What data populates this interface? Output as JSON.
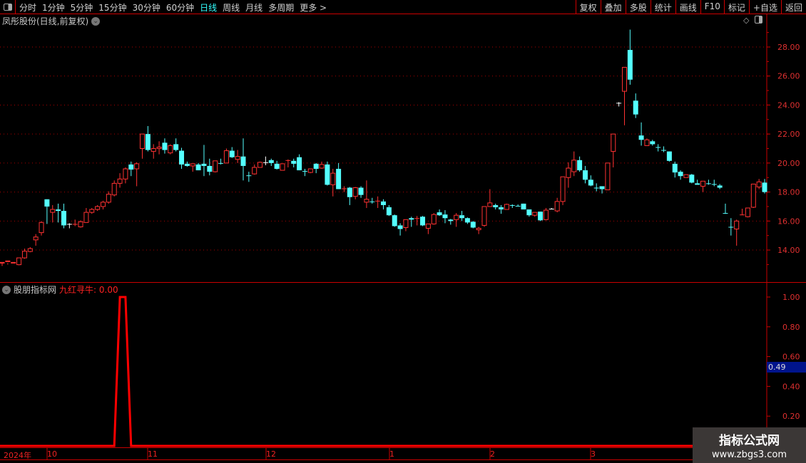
{
  "toolbar": {
    "periods": [
      "分时",
      "1分钟",
      "5分钟",
      "15分钟",
      "30分钟",
      "60分钟",
      "日线",
      "周线",
      "月线",
      "多周期",
      "更多 >"
    ],
    "active_period": "日线",
    "buttons": [
      "复权",
      "叠加",
      "多股",
      "统计",
      "画线",
      "F10",
      "标记",
      "+自选",
      "返回"
    ]
  },
  "main": {
    "title": "凤彤股份(日线,前复权)",
    "y_ticks": [
      "28.00",
      "26.00",
      "24.00",
      "22.00",
      "20.00",
      "18.00",
      "16.00",
      "14.00"
    ]
  },
  "indicator": {
    "name": "股朋指标网",
    "value_label": "九红寻牛: 0.00",
    "y_ticks": [
      "1.00",
      "0.80",
      "0.60",
      "0.40",
      "0.20"
    ],
    "cursor_value": "0.49"
  },
  "time_axis": [
    "2024年",
    "10",
    "11",
    "12",
    "1",
    "2",
    "3"
  ],
  "watermark": {
    "line1": "指标公式网",
    "line2": "www.zbgs3.com"
  },
  "colors": {
    "up": "#ff3232",
    "down": "#54ffff",
    "axis": "#c80000",
    "signal": "#ff0000"
  },
  "chart_data": {
    "type": "candlestick",
    "y_range": [
      12.5,
      29.5
    ],
    "ohlc": [
      [
        13.1,
        13.15,
        12.9,
        13.1
      ],
      [
        13.2,
        13.25,
        13.0,
        13.1
      ],
      [
        13.1,
        13.15,
        13.0,
        13.0
      ],
      [
        12.99,
        13.46,
        12.95,
        13.46
      ],
      [
        13.46,
        13.92,
        13.4,
        14.1
      ],
      [
        13.9,
        14.1,
        13.85,
        14.2
      ],
      [
        14.7,
        14.9,
        14.3,
        15.1
      ],
      [
        15.2,
        15.9,
        15.0,
        16.0
      ],
      [
        17.5,
        17.0,
        15.8,
        17.5
      ],
      [
        16.6,
        16.8,
        15.9,
        17.1
      ],
      [
        16.8,
        16.7,
        15.9,
        17.2
      ],
      [
        16.7,
        15.7,
        15.5,
        17.2
      ],
      [
        15.8,
        15.8,
        15.5,
        15.85
      ],
      [
        15.8,
        15.8,
        15.65,
        16.1
      ],
      [
        15.6,
        15.95,
        15.55,
        16.05
      ],
      [
        15.9,
        16.6,
        15.9,
        16.9
      ],
      [
        16.6,
        16.8,
        16.5,
        16.9
      ],
      [
        16.8,
        17.0,
        16.7,
        17.1
      ],
      [
        17.0,
        17.3,
        16.8,
        17.4
      ],
      [
        17.3,
        17.85,
        17.2,
        18.05
      ],
      [
        17.8,
        18.6,
        17.7,
        18.8
      ],
      [
        18.6,
        18.9,
        18.3,
        19.3
      ],
      [
        18.9,
        19.6,
        18.6,
        19.7
      ],
      [
        19.9,
        19.55,
        19.1,
        20.1
      ],
      [
        19.6,
        19.95,
        18.4,
        20.05
      ],
      [
        21.0,
        22.0,
        20.3,
        22.0
      ],
      [
        22.0,
        20.9,
        20.8,
        22.55
      ],
      [
        20.8,
        21.0,
        20.3,
        21.3
      ],
      [
        21.0,
        21.1,
        20.6,
        21.5
      ],
      [
        21.4,
        20.9,
        20.65,
        21.7
      ],
      [
        20.7,
        21.2,
        20.6,
        21.3
      ],
      [
        21.3,
        20.9,
        20.8,
        21.7
      ],
      [
        20.85,
        19.9,
        19.6,
        21.05
      ],
      [
        19.95,
        19.8,
        19.75,
        20.1
      ],
      [
        19.8,
        19.95,
        19.4,
        19.95
      ],
      [
        19.9,
        19.5,
        19.5,
        20.0
      ],
      [
        19.95,
        19.8,
        19.1,
        21.25
      ],
      [
        19.8,
        19.4,
        19.15,
        20.3
      ],
      [
        19.4,
        20.15,
        19.35,
        20.15
      ],
      [
        20.0,
        20.0,
        19.9,
        20.3
      ],
      [
        20.0,
        20.85,
        20.0,
        21.0
      ],
      [
        20.85,
        20.4,
        20.35,
        21.1
      ],
      [
        20.25,
        20.45,
        20.0,
        20.9
      ],
      [
        20.45,
        19.8,
        18.8,
        21.7
      ],
      [
        19.15,
        19.15,
        18.7,
        19.4
      ],
      [
        19.25,
        19.7,
        19.2,
        19.9
      ],
      [
        19.7,
        20.05,
        19.7,
        20.1
      ],
      [
        20.05,
        20.05,
        19.85,
        20.45
      ],
      [
        20.2,
        20.0,
        19.8,
        20.3
      ],
      [
        19.95,
        19.6,
        19.55,
        20.15
      ],
      [
        19.5,
        19.95,
        19.5,
        19.95
      ],
      [
        20.2,
        20.2,
        19.7,
        20.25
      ],
      [
        20.15,
        19.95,
        19.7,
        20.3
      ],
      [
        20.4,
        19.5,
        19.5,
        20.6
      ],
      [
        19.45,
        19.45,
        19.1,
        19.6
      ],
      [
        19.35,
        19.6,
        19.3,
        19.6
      ],
      [
        19.95,
        19.6,
        19.3,
        20.0
      ],
      [
        19.65,
        19.9,
        19.6,
        20.1
      ],
      [
        19.9,
        18.5,
        18.45,
        20.1
      ],
      [
        18.5,
        19.3,
        17.7,
        19.6
      ],
      [
        19.6,
        18.2,
        18.2,
        20.0
      ],
      [
        18.25,
        18.25,
        18.0,
        18.4
      ],
      [
        18.3,
        17.65,
        17.1,
        18.35
      ],
      [
        17.7,
        18.3,
        17.5,
        18.35
      ],
      [
        18.3,
        17.8,
        17.6,
        18.4
      ],
      [
        17.3,
        17.5,
        16.9,
        18.8
      ],
      [
        17.35,
        17.35,
        17.2,
        17.6
      ],
      [
        17.4,
        17.4,
        16.9,
        17.7
      ],
      [
        17.35,
        17.1,
        16.8,
        17.5
      ],
      [
        16.95,
        16.4,
        16.35,
        17.1
      ],
      [
        16.4,
        15.65,
        15.6,
        16.45
      ],
      [
        15.7,
        15.45,
        15.0,
        15.85
      ],
      [
        15.55,
        16.1,
        15.3,
        16.1
      ],
      [
        16.2,
        16.1,
        15.6,
        16.3
      ],
      [
        16.2,
        16.2,
        15.7,
        16.35
      ],
      [
        16.3,
        15.7,
        15.65,
        16.35
      ],
      [
        15.5,
        15.8,
        15.1,
        15.8
      ],
      [
        15.8,
        16.45,
        15.75,
        16.55
      ],
      [
        16.6,
        16.4,
        16.35,
        16.8
      ],
      [
        16.45,
        16.2,
        15.85,
        16.75
      ],
      [
        16.1,
        16.0,
        15.75,
        16.15
      ],
      [
        16.1,
        16.4,
        15.6,
        16.55
      ],
      [
        16.4,
        16.2,
        16.0,
        16.7
      ],
      [
        16.2,
        15.9,
        15.8,
        16.25
      ],
      [
        15.95,
        15.55,
        15.5,
        16.0
      ],
      [
        15.4,
        15.5,
        15.1,
        15.6
      ],
      [
        15.7,
        17.0,
        15.6,
        17.0
      ],
      [
        17.0,
        17.25,
        17.0,
        18.2
      ],
      [
        17.1,
        16.95,
        16.8,
        17.2
      ],
      [
        16.95,
        16.8,
        16.5,
        17.1
      ],
      [
        16.8,
        17.15,
        16.8,
        17.2
      ],
      [
        17.1,
        17.1,
        16.9,
        17.15
      ],
      [
        17.05,
        17.05,
        17.0,
        17.15
      ],
      [
        17.2,
        16.8,
        16.8,
        17.2
      ],
      [
        16.8,
        16.4,
        16.3,
        16.8
      ],
      [
        16.4,
        16.6,
        16.3,
        16.6
      ],
      [
        16.65,
        16.05,
        16.0,
        16.65
      ],
      [
        16.1,
        16.75,
        16.05,
        16.9
      ],
      [
        16.85,
        16.85,
        16.8,
        16.9
      ],
      [
        16.7,
        17.35,
        16.6,
        17.6
      ],
      [
        17.35,
        19.05,
        17.1,
        19.05
      ],
      [
        19.0,
        19.65,
        18.3,
        20.05
      ],
      [
        19.4,
        20.2,
        19.1,
        20.8
      ],
      [
        20.2,
        19.5,
        19.4,
        20.45
      ],
      [
        19.5,
        18.85,
        18.6,
        19.8
      ],
      [
        18.85,
        18.45,
        18.4,
        19.15
      ],
      [
        18.3,
        18.3,
        18.05,
        18.6
      ],
      [
        18.4,
        18.2,
        17.9,
        18.4
      ],
      [
        18.15,
        20.0,
        18.15,
        20.0
      ],
      [
        20.8,
        22.0,
        19.7,
        22.0
      ],
      [
        24.15,
        24.15,
        23.9,
        24.2
      ],
      [
        24.95,
        26.6,
        22.6,
        26.6
      ],
      [
        27.8,
        25.75,
        25.4,
        29.2
      ],
      [
        24.3,
        23.35,
        23.1,
        24.8
      ],
      [
        21.9,
        21.6,
        21.2,
        22.8
      ],
      [
        21.2,
        21.6,
        21.2,
        21.7
      ],
      [
        21.5,
        21.3,
        21.2,
        21.6
      ],
      [
        21.1,
        21.1,
        20.8,
        21.3
      ],
      [
        20.9,
        20.9,
        20.75,
        21.15
      ],
      [
        20.8,
        20.15,
        20.1,
        20.8
      ],
      [
        19.95,
        19.35,
        19.0,
        20.1
      ],
      [
        19.4,
        19.1,
        18.85,
        19.5
      ],
      [
        19.0,
        19.2,
        19.0,
        19.2
      ],
      [
        19.2,
        18.65,
        18.6,
        19.25
      ],
      [
        18.6,
        18.5,
        18.5,
        18.85
      ],
      [
        18.4,
        18.75,
        18.0,
        18.75
      ],
      [
        18.6,
        18.6,
        18.5,
        18.85
      ],
      [
        18.55,
        18.55,
        18.4,
        18.85
      ],
      [
        18.45,
        18.3,
        18.2,
        18.55
      ],
      [
        16.55,
        16.55,
        16.5,
        17.2
      ],
      [
        15.6,
        15.6,
        15.0,
        16.2
      ],
      [
        15.45,
        16.0,
        14.3,
        16.1
      ],
      [
        16.45,
        16.45,
        16.4,
        16.85
      ],
      [
        16.3,
        16.9,
        16.25,
        16.9
      ],
      [
        16.95,
        18.55,
        16.9,
        18.55
      ],
      [
        18.35,
        18.7,
        18.2,
        18.9
      ],
      [
        18.65,
        18.0,
        17.9,
        18.9
      ]
    ],
    "indicator_values_nonzero": {
      "21": 1,
      "22": 1
    },
    "indicator_y_range": [
      0,
      1.1
    ]
  }
}
